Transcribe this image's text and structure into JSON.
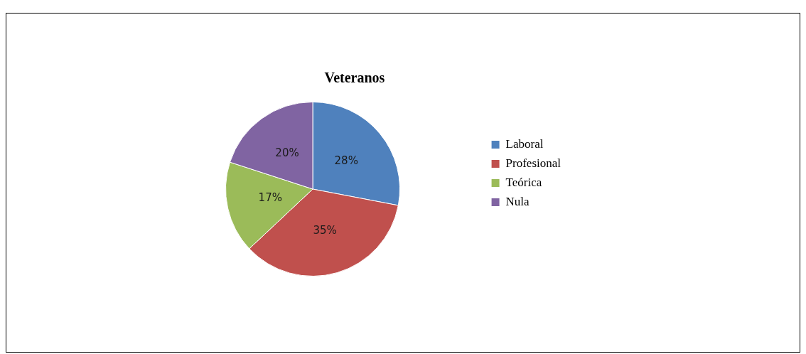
{
  "chart_data": {
    "type": "pie",
    "title": "Veteranos",
    "categories": [
      "Laboral",
      "Profesional",
      "Teórica",
      "Nula"
    ],
    "values": [
      28,
      35,
      17,
      20
    ],
    "colors": [
      "#4f81bd",
      "#c0504d",
      "#9bbb59",
      "#8064a2"
    ],
    "value_labels": [
      "28%",
      "35%",
      "17%",
      "20%"
    ],
    "legend": "right"
  }
}
